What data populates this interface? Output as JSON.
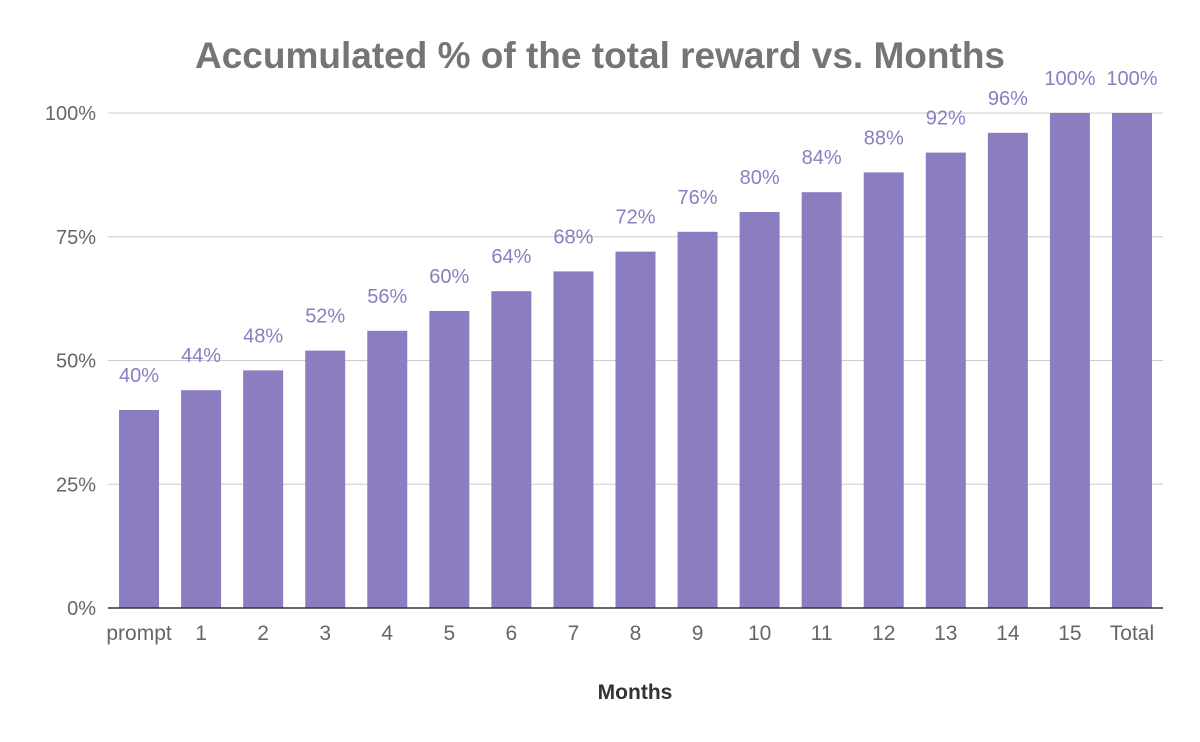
{
  "chart_data": {
    "type": "bar",
    "title": "Accumulated % of the total reward vs. Months",
    "xlabel": "Months",
    "ylabel": "",
    "categories": [
      "prompt",
      "1",
      "2",
      "3",
      "4",
      "5",
      "6",
      "7",
      "8",
      "9",
      "10",
      "11",
      "12",
      "13",
      "14",
      "15",
      "Total"
    ],
    "values": [
      40,
      44,
      48,
      52,
      56,
      60,
      64,
      68,
      72,
      76,
      80,
      84,
      88,
      92,
      96,
      100,
      100
    ],
    "data_labels": [
      "40%",
      "44%",
      "48%",
      "52%",
      "56%",
      "60%",
      "64%",
      "68%",
      "72%",
      "76%",
      "80%",
      "84%",
      "88%",
      "92%",
      "96%",
      "100%",
      "100%"
    ],
    "y_ticks": [
      0,
      25,
      50,
      75,
      100
    ],
    "y_tick_labels": [
      "0%",
      "25%",
      "50%",
      "75%",
      "100%"
    ],
    "ylim": [
      0,
      100
    ],
    "grid": true,
    "legend": "none",
    "colors": {
      "bar": "#8c7dc1",
      "data_label": "#8c7dc1"
    }
  }
}
